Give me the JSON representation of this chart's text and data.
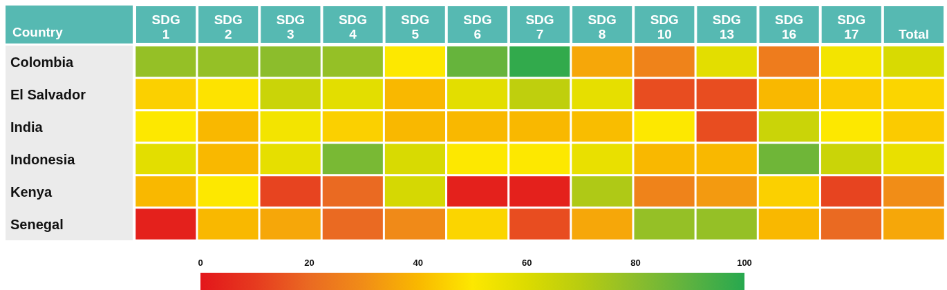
{
  "chart_data": {
    "type": "heatmap",
    "ylabel": "Country",
    "categories": [
      "SDG 1",
      "SDG 2",
      "SDG 3",
      "SDG 4",
      "SDG 5",
      "SDG 6",
      "SDG 7",
      "SDG 8",
      "SDG 10",
      "SDG 13",
      "SDG 16",
      "SDG 17",
      "Total"
    ],
    "y_categories": [
      "Colombia",
      "El Salvador",
      "India",
      "Indonesia",
      "Kenya",
      "Senegal"
    ],
    "cells": [
      [
        78,
        78,
        80,
        78,
        50,
        88,
        98,
        36,
        27,
        58,
        25,
        53,
        61
      ],
      [
        45,
        49,
        65,
        58,
        40,
        58,
        68,
        57,
        14,
        14,
        40,
        44,
        46
      ],
      [
        50,
        40,
        53,
        45,
        40,
        40,
        40,
        41,
        50,
        14,
        65,
        50,
        44
      ],
      [
        58,
        40,
        57,
        84,
        61,
        50,
        50,
        56,
        40,
        40,
        86,
        65,
        56
      ],
      [
        40,
        50,
        12,
        20,
        62,
        3,
        3,
        72,
        27,
        33,
        45,
        12,
        30
      ],
      [
        3,
        40,
        36,
        20,
        29,
        46,
        14,
        36,
        78,
        78,
        40,
        20,
        36
      ]
    ],
    "clim": [
      0,
      100
    ],
    "cticks": [
      0,
      20,
      40,
      60,
      80,
      100
    ]
  }
}
